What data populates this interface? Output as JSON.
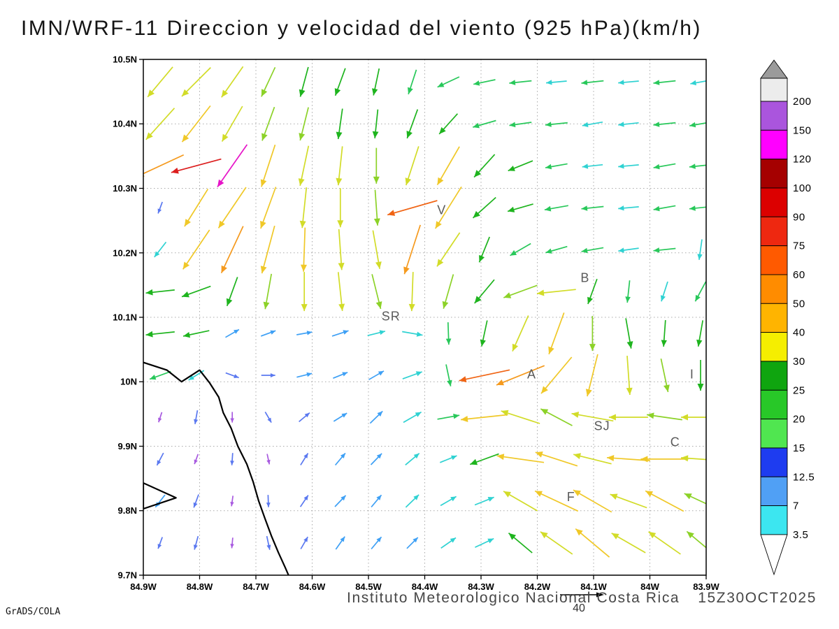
{
  "title": "IMN/WRF-11 Direccion y velocidad del viento (925 hPa)(km/h)",
  "footer": {
    "institute": "Instituto Meteorologico Nacional Costa Rica",
    "datetime": "15Z30OCT2025",
    "ref_vector_label": "40",
    "ref_vector_value_kmh": 40
  },
  "credit": "GrADS/COLA",
  "axes": {
    "lat_labels": [
      "10.5N",
      "10.4N",
      "10.3N",
      "10.2N",
      "10.1N",
      "10N",
      "9.9N",
      "9.8N",
      "9.7N"
    ],
    "lat_tick_values": [
      10.5,
      10.4,
      10.3,
      10.2,
      10.1,
      10.0,
      9.9,
      9.8,
      9.7
    ],
    "lon_labels": [
      "84.9W",
      "84.8W",
      "84.7W",
      "84.6W",
      "84.5W",
      "84.4W",
      "84.3W",
      "84.2W",
      "84.1W",
      "84W",
      "83.9W"
    ],
    "lon_tick_values": [
      84.9,
      84.8,
      84.7,
      84.6,
      84.5,
      84.4,
      84.3,
      84.2,
      84.1,
      84.0,
      83.9
    ],
    "grid_style": "dotted"
  },
  "stations": [
    {
      "label": "V",
      "lon": 84.37,
      "lat": 10.26
    },
    {
      "label": "B",
      "lon": 84.115,
      "lat": 10.155
    },
    {
      "label": "SR",
      "lon": 84.46,
      "lat": 10.095
    },
    {
      "label": "A",
      "lon": 84.21,
      "lat": 10.005
    },
    {
      "label": "SJ",
      "lon": 84.085,
      "lat": 9.925
    },
    {
      "label": "C",
      "lon": 83.955,
      "lat": 9.9
    },
    {
      "label": "F",
      "lon": 84.14,
      "lat": 9.815
    },
    {
      "label": "I",
      "lon": 83.925,
      "lat": 10.005
    }
  ],
  "coastline": {
    "main": [
      [
        84.9,
        10.03
      ],
      [
        84.858,
        10.018
      ],
      [
        84.832,
        10.0
      ],
      [
        84.8,
        10.018
      ],
      [
        84.782,
        9.998
      ],
      [
        84.766,
        9.976
      ],
      [
        84.758,
        9.952
      ],
      [
        84.744,
        9.928
      ],
      [
        84.732,
        9.9
      ],
      [
        84.716,
        9.872
      ],
      [
        84.705,
        9.845
      ],
      [
        84.695,
        9.815
      ],
      [
        84.684,
        9.788
      ],
      [
        84.672,
        9.76
      ],
      [
        84.66,
        9.735
      ],
      [
        84.648,
        9.712
      ],
      [
        84.642,
        9.7
      ]
    ],
    "islet": [
      [
        84.9,
        9.843
      ],
      [
        84.842,
        9.82
      ],
      [
        84.9,
        9.803
      ]
    ]
  },
  "colorbar": {
    "levels": [
      200,
      150,
      120,
      100,
      90,
      75,
      60,
      50,
      40,
      30,
      25,
      20,
      15,
      12.5,
      7,
      3.5
    ],
    "colors": [
      "#aa55dd",
      "#ff00ff",
      "#a50000",
      "#dc0000",
      "#ee2810",
      "#ff5a00",
      "#ff8c00",
      "#ffb400",
      "#f5ee00",
      "#0fa50f",
      "#28c828",
      "#50e650",
      "#1e3cf0",
      "#50a0f5",
      "#3ce6f0"
    ],
    "above_color": "#ececec",
    "top_triangle_color": "#9b9b9b",
    "below_triangle_color": "#ffffff"
  },
  "vector_palette": [
    {
      "max": 7,
      "color": "#a85ae0"
    },
    {
      "max": 11,
      "color": "#5a78f0"
    },
    {
      "max": 14,
      "color": "#3ea0f5"
    },
    {
      "max": 18,
      "color": "#2fd2d2"
    },
    {
      "max": 24,
      "color": "#28c85a"
    },
    {
      "max": 30,
      "color": "#1eb41e"
    },
    {
      "max": 36,
      "color": "#8cd228"
    },
    {
      "max": 44,
      "color": "#d2dc28"
    },
    {
      "max": 52,
      "color": "#f0c828"
    },
    {
      "max": 62,
      "color": "#f59a1e"
    },
    {
      "max": 80,
      "color": "#f06414"
    },
    {
      "max": 100,
      "color": "#dc1e1e"
    },
    {
      "max": 130,
      "color": "#e614c8"
    },
    {
      "max": 999,
      "color": "#a850e6"
    }
  ],
  "chart_data": {
    "type": "vector_field",
    "units": "km/h",
    "pressure_level": "925 hPa",
    "model": "IMN/WRF-11",
    "valid_time": "15Z30OCT2025",
    "reference_speed": 40,
    "lon_w": [
      84.87,
      84.806,
      84.742,
      84.678,
      84.614,
      84.55,
      84.486,
      84.422,
      84.358,
      84.294,
      84.23,
      84.166,
      84.102,
      84.038,
      83.974,
      83.91
    ],
    "lat": [
      10.465,
      10.4,
      10.335,
      10.27,
      10.205,
      10.14,
      10.075,
      10.01,
      9.945,
      9.88,
      9.815,
      9.75
    ],
    "vectors_dir_speed": [
      [
        [
          230,
          40
        ],
        [
          225,
          42
        ],
        [
          235,
          38
        ],
        [
          245,
          32
        ],
        [
          255,
          30
        ],
        [
          250,
          28
        ],
        [
          258,
          26
        ],
        [
          252,
          24
        ],
        [
          205,
          22
        ],
        [
          192,
          20
        ],
        [
          186,
          20
        ],
        [
          185,
          18
        ],
        [
          186,
          20
        ],
        [
          185,
          18
        ],
        [
          186,
          20
        ],
        [
          190,
          18
        ]
      ],
      [
        [
          228,
          44
        ],
        [
          232,
          48
        ],
        [
          240,
          42
        ],
        [
          250,
          36
        ],
        [
          256,
          34
        ],
        [
          262,
          30
        ],
        [
          264,
          28
        ],
        [
          250,
          30
        ],
        [
          228,
          26
        ],
        [
          196,
          22
        ],
        [
          188,
          20
        ],
        [
          186,
          20
        ],
        [
          190,
          18
        ],
        [
          186,
          18
        ],
        [
          186,
          20
        ],
        [
          190,
          20
        ]
      ],
      [
        [
          205,
          58
        ],
        [
          195,
          95
        ],
        [
          235,
          115
        ],
        [
          252,
          46
        ],
        [
          258,
          42
        ],
        [
          264,
          40
        ],
        [
          270,
          36
        ],
        [
          252,
          42
        ],
        [
          240,
          46
        ],
        [
          228,
          30
        ],
        [
          202,
          25
        ],
        [
          190,
          20
        ],
        [
          186,
          18
        ],
        [
          185,
          18
        ],
        [
          190,
          20
        ],
        [
          186,
          20
        ]
      ],
      [
        [
          250,
          8
        ],
        [
          238,
          46
        ],
        [
          236,
          52
        ],
        [
          250,
          46
        ],
        [
          264,
          42
        ],
        [
          270,
          40
        ],
        [
          274,
          36
        ],
        [
          196,
          72
        ],
        [
          238,
          52
        ],
        [
          222,
          30
        ],
        [
          196,
          25
        ],
        [
          190,
          22
        ],
        [
          186,
          20
        ],
        [
          185,
          18
        ],
        [
          190,
          20
        ],
        [
          186,
          20
        ]
      ],
      [
        [
          232,
          16
        ],
        [
          236,
          50
        ],
        [
          245,
          56
        ],
        [
          255,
          52
        ],
        [
          268,
          46
        ],
        [
          274,
          42
        ],
        [
          280,
          40
        ],
        [
          252,
          56
        ],
        [
          236,
          42
        ],
        [
          248,
          26
        ],
        [
          210,
          22
        ],
        [
          196,
          20
        ],
        [
          190,
          20
        ],
        [
          188,
          18
        ],
        [
          186,
          20
        ],
        [
          262,
          18
        ]
      ],
      [
        [
          186,
          28
        ],
        [
          200,
          30
        ],
        [
          250,
          30
        ],
        [
          260,
          36
        ],
        [
          270,
          40
        ],
        [
          276,
          40
        ],
        [
          284,
          36
        ],
        [
          268,
          40
        ],
        [
          254,
          36
        ],
        [
          230,
          30
        ],
        [
          200,
          36
        ],
        [
          186,
          40
        ],
        [
          250,
          25
        ],
        [
          264,
          20
        ],
        [
          252,
          18
        ],
        [
          242,
          20
        ]
      ],
      [
        [
          186,
          28
        ],
        [
          192,
          25
        ],
        [
          30,
          12
        ],
        [
          20,
          12
        ],
        [
          10,
          12
        ],
        [
          18,
          14
        ],
        [
          14,
          15
        ],
        [
          350,
          18
        ],
        [
          272,
          20
        ],
        [
          258,
          25
        ],
        [
          246,
          40
        ],
        [
          250,
          46
        ],
        [
          270,
          35
        ],
        [
          280,
          30
        ],
        [
          266,
          25
        ],
        [
          260,
          25
        ]
      ],
      [
        [
          200,
          20
        ],
        [
          212,
          15
        ],
        [
          340,
          10
        ],
        [
          0,
          10
        ],
        [
          14,
          12
        ],
        [
          22,
          12
        ],
        [
          30,
          14
        ],
        [
          20,
          18
        ],
        [
          282,
          20
        ],
        [
          192,
          72
        ],
        [
          202,
          55
        ],
        [
          230,
          50
        ],
        [
          256,
          45
        ],
        [
          274,
          40
        ],
        [
          282,
          34
        ],
        [
          270,
          30
        ]
      ],
      [
        [
          252,
          6
        ],
        [
          260,
          10
        ],
        [
          270,
          6
        ],
        [
          300,
          8
        ],
        [
          40,
          10
        ],
        [
          32,
          12
        ],
        [
          44,
          14
        ],
        [
          30,
          18
        ],
        [
          10,
          20
        ],
        [
          186,
          50
        ],
        [
          162,
          42
        ],
        [
          152,
          36
        ],
        [
          170,
          44
        ],
        [
          180,
          40
        ],
        [
          172,
          36
        ],
        [
          180,
          40
        ]
      ],
      [
        [
          242,
          10
        ],
        [
          250,
          6
        ],
        [
          266,
          8
        ],
        [
          282,
          6
        ],
        [
          58,
          10
        ],
        [
          50,
          12
        ],
        [
          46,
          12
        ],
        [
          40,
          15
        ],
        [
          22,
          15
        ],
        [
          200,
          30
        ],
        [
          172,
          50
        ],
        [
          162,
          46
        ],
        [
          166,
          40
        ],
        [
          176,
          45
        ],
        [
          180,
          50
        ],
        [
          176,
          40
        ]
      ],
      [
        [
          232,
          12
        ],
        [
          250,
          10
        ],
        [
          262,
          6
        ],
        [
          272,
          8
        ],
        [
          56,
          10
        ],
        [
          46,
          12
        ],
        [
          50,
          12
        ],
        [
          44,
          15
        ],
        [
          30,
          15
        ],
        [
          22,
          18
        ],
        [
          150,
          40
        ],
        [
          155,
          50
        ],
        [
          150,
          46
        ],
        [
          160,
          40
        ],
        [
          152,
          45
        ],
        [
          155,
          36
        ]
      ],
      [
        [
          250,
          8
        ],
        [
          255,
          10
        ],
        [
          265,
          6
        ],
        [
          282,
          10
        ],
        [
          60,
          10
        ],
        [
          55,
          12
        ],
        [
          50,
          12
        ],
        [
          45,
          12
        ],
        [
          35,
          15
        ],
        [
          25,
          18
        ],
        [
          140,
          30
        ],
        [
          145,
          40
        ],
        [
          140,
          46
        ],
        [
          150,
          40
        ],
        [
          145,
          40
        ],
        [
          140,
          36
        ]
      ]
    ]
  }
}
